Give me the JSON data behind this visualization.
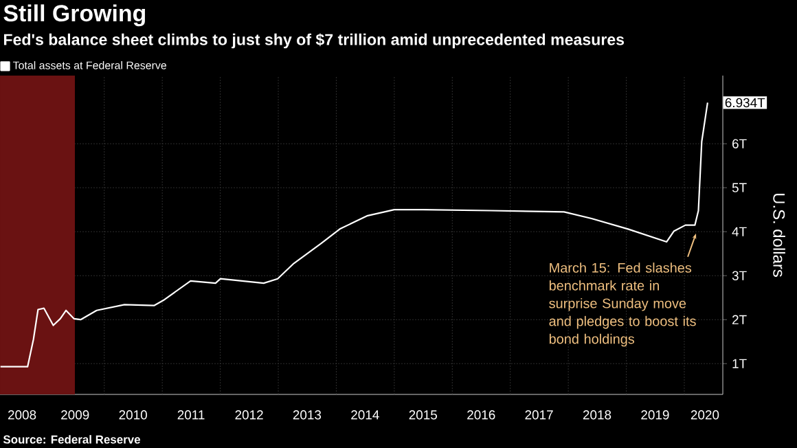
{
  "chart_data": {
    "type": "line",
    "title": "Still Growing",
    "subtitle": "Fed's balance sheet climbs to just shy of $7 trillion amid unprecedented measures",
    "ylabel": "U.S. dollars",
    "legend": "top left",
    "grid": true,
    "xlim": [
      "2008-03-15",
      "2020-08-31"
    ],
    "ylim": [
      0.3,
      7.55
    ],
    "xticks": [
      {
        "value": "2008-08-01",
        "label": "2008"
      },
      {
        "value": "2009-01-01",
        "label": null
      },
      {
        "value": "2009-07-01",
        "label": "2009"
      },
      {
        "value": "2010-01-01",
        "label": null
      },
      {
        "value": "2010-07-01",
        "label": "2010"
      },
      {
        "value": "2011-01-01",
        "label": null
      },
      {
        "value": "2011-07-01",
        "label": "2011"
      },
      {
        "value": "2012-01-01",
        "label": null
      },
      {
        "value": "2012-07-01",
        "label": "2012"
      },
      {
        "value": "2013-01-01",
        "label": null
      },
      {
        "value": "2013-07-01",
        "label": "2013"
      },
      {
        "value": "2014-01-01",
        "label": null
      },
      {
        "value": "2014-07-01",
        "label": "2014"
      },
      {
        "value": "2015-01-01",
        "label": null
      },
      {
        "value": "2015-07-01",
        "label": "2015"
      },
      {
        "value": "2016-01-01",
        "label": null
      },
      {
        "value": "2016-07-01",
        "label": "2016"
      },
      {
        "value": "2017-01-01",
        "label": null
      },
      {
        "value": "2017-07-01",
        "label": "2017"
      },
      {
        "value": "2018-01-01",
        "label": null
      },
      {
        "value": "2018-07-01",
        "label": "2018"
      },
      {
        "value": "2019-01-01",
        "label": null
      },
      {
        "value": "2019-07-01",
        "label": "2019"
      },
      {
        "value": "2020-01-01",
        "label": null
      },
      {
        "value": "2020-05-10",
        "label": "2020"
      }
    ],
    "yticks": [
      {
        "value": 1,
        "label": "1T"
      },
      {
        "value": 2,
        "label": "2T"
      },
      {
        "value": 3,
        "label": "3T"
      },
      {
        "value": 4,
        "label": "4T"
      },
      {
        "value": 5,
        "label": "5T"
      },
      {
        "value": 6,
        "label": "6T"
      }
    ],
    "bands": [
      {
        "axis": "x",
        "from": "2008-03-15",
        "to": "2009-06-30",
        "color": "#6a1212"
      }
    ],
    "series": [
      {
        "name": "Total assets at Federal Reserve",
        "color": "#ffffff",
        "x": [
          "2008-03-18",
          "2008-09-05",
          "2008-10-12",
          "2008-11-10",
          "2008-12-17",
          "2009-02-14",
          "2009-03-30",
          "2009-05-05",
          "2009-06-25",
          "2009-08-05",
          "2009-11-14",
          "2010-05-08",
          "2010-11-10",
          "2011-01-08",
          "2011-06-28",
          "2011-12-02",
          "2012-01-02",
          "2012-10-01",
          "2012-12-28",
          "2013-04-09",
          "2013-09-27",
          "2014-01-23",
          "2014-07-13",
          "2015-01-01",
          "2015-07-01",
          "2016-08-29",
          "2017-12-05",
          "2018-05-27",
          "2019-01-12",
          "2019-09-12",
          "2019-10-27",
          "2020-01-08",
          "2020-03-08",
          "2020-03-30",
          "2020-04-20",
          "2020-05-27"
        ],
        "values": [
          0.93,
          0.93,
          1.55,
          2.23,
          2.26,
          1.87,
          2.02,
          2.21,
          2.02,
          2.0,
          2.21,
          2.34,
          2.32,
          2.44,
          2.88,
          2.83,
          2.93,
          2.83,
          2.93,
          3.28,
          3.73,
          4.06,
          4.36,
          4.5,
          4.5,
          4.48,
          4.45,
          4.3,
          4.06,
          3.77,
          4.01,
          4.15,
          4.15,
          4.48,
          6.05,
          6.934
        ],
        "value_labels": [
          null,
          null,
          null,
          null,
          null,
          null,
          null,
          null,
          null,
          null,
          null,
          null,
          null,
          null,
          null,
          null,
          null,
          null,
          null,
          null,
          null,
          null,
          null,
          null,
          null,
          null,
          null,
          null,
          null,
          null,
          null,
          null,
          null,
          null,
          null,
          "6.934T"
        ]
      }
    ],
    "annotations": [
      "Source: Federal Reserve",
      {
        "text": "March 15: Fed slashes benchmark rate in surprise Sunday move and pledges to boost its bond holdings",
        "x": "2020-03-15",
        "y": 3.96
      }
    ]
  }
}
